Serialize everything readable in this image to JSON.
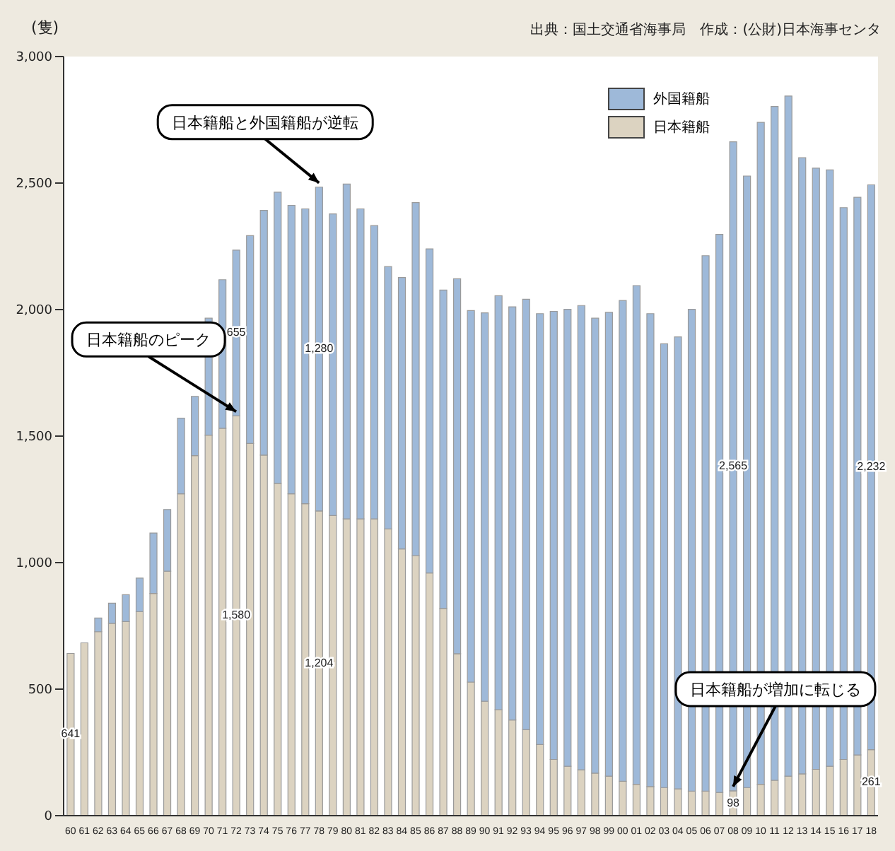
{
  "chart_data": {
    "type": "bar",
    "stacked": true,
    "ylabel": "(隻)",
    "categories": [
      "60",
      "61",
      "62",
      "63",
      "64",
      "65",
      "66",
      "67",
      "68",
      "69",
      "70",
      "71",
      "72",
      "73",
      "74",
      "75",
      "76",
      "77",
      "78",
      "79",
      "80",
      "81",
      "82",
      "83",
      "84",
      "85",
      "86",
      "87",
      "88",
      "89",
      "90",
      "91",
      "92",
      "93",
      "94",
      "95",
      "96",
      "97",
      "98",
      "99",
      "00",
      "01",
      "02",
      "03",
      "04",
      "05",
      "06",
      "07",
      "08",
      "09",
      "10",
      "11",
      "12",
      "13",
      "14",
      "15",
      "16",
      "17",
      "18"
    ],
    "series": [
      {
        "name": "日本籍船",
        "color": "#dcd3c1",
        "values": [
          641,
          683,
          727,
          760,
          767,
          806,
          878,
          966,
          1272,
          1423,
          1504,
          1531,
          1580,
          1471,
          1425,
          1313,
          1272,
          1233,
          1204,
          1186,
          1173,
          1173,
          1173,
          1133,
          1054,
          1028,
          959,
          819,
          640,
          528,
          452,
          419,
          378,
          340,
          281,
          222,
          195,
          181,
          168,
          156,
          136,
          124,
          115,
          111,
          106,
          97,
          97,
          92,
          98,
          111,
          124,
          140,
          156,
          165,
          183,
          195,
          222,
          240,
          261
        ],
        "value_labels": [
          "641",
          null,
          null,
          null,
          null,
          null,
          null,
          null,
          null,
          null,
          null,
          null,
          "1,580",
          null,
          null,
          null,
          null,
          null,
          "1,204",
          null,
          null,
          null,
          null,
          null,
          null,
          null,
          null,
          null,
          null,
          null,
          null,
          null,
          null,
          null,
          null,
          null,
          null,
          null,
          null,
          null,
          null,
          null,
          null,
          null,
          null,
          null,
          null,
          null,
          "98",
          null,
          null,
          null,
          null,
          null,
          null,
          null,
          null,
          null,
          "261"
        ]
      },
      {
        "name": "外国籍船",
        "color": "#9eb9d9",
        "values": [
          0,
          0,
          54,
          80,
          106,
          133,
          239,
          244,
          299,
          234,
          462,
          587,
          655,
          821,
          967,
          1151,
          1140,
          1165,
          1280,
          1192,
          1323,
          1225,
          1159,
          1037,
          1073,
          1395,
          1281,
          1258,
          1482,
          1468,
          1535,
          1636,
          1633,
          1701,
          1703,
          1771,
          1806,
          1835,
          1798,
          1833,
          1900,
          1971,
          1869,
          1754,
          1786,
          1904,
          2116,
          2205,
          2565,
          2417,
          2616,
          2663,
          2688,
          2435,
          2376,
          2357,
          2181,
          2204,
          2232
        ],
        "value_labels": [
          null,
          null,
          null,
          null,
          null,
          null,
          null,
          null,
          null,
          null,
          null,
          null,
          "655",
          null,
          null,
          null,
          null,
          null,
          "1,280",
          null,
          null,
          null,
          null,
          null,
          null,
          null,
          null,
          null,
          null,
          null,
          null,
          null,
          null,
          null,
          null,
          null,
          null,
          null,
          null,
          null,
          null,
          null,
          null,
          null,
          null,
          null,
          null,
          null,
          "2,565",
          null,
          null,
          null,
          null,
          null,
          null,
          null,
          null,
          null,
          "2,232"
        ]
      }
    ],
    "ylim": [
      0,
      3000
    ],
    "yticks": [
      {
        "value": 0,
        "label": "0"
      },
      {
        "value": 500,
        "label": "500"
      },
      {
        "value": 1000,
        "label": "1,000"
      },
      {
        "value": 1500,
        "label": "1,500"
      },
      {
        "value": 2000,
        "label": "2,000"
      },
      {
        "value": 2500,
        "label": "2,500"
      },
      {
        "value": 3000,
        "label": "3,000"
      }
    ],
    "grid": false,
    "legend": "top right",
    "annotations": [
      {
        "text": "日本籍船と外国籍船が逆転",
        "x": "78",
        "y": 2484
      },
      {
        "text": "日本籍船のピーク",
        "x": "72",
        "y": 1580
      },
      {
        "text": "日本籍船が増加に転じる",
        "x": "08",
        "y": 98
      },
      "出典：国土交通省海事局　作成：(公財)日本海事センタ"
    ]
  }
}
